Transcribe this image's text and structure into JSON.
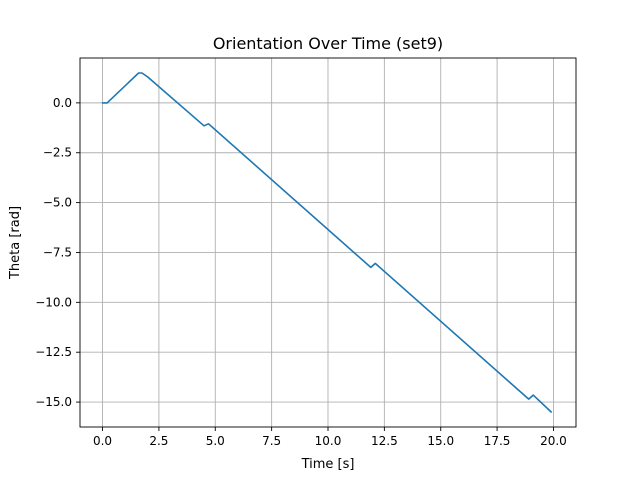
{
  "chart_data": {
    "type": "line",
    "title": "Orientation Over Time (set9)",
    "xlabel": "Time [s]",
    "ylabel": "Theta [rad]",
    "xlim": [
      -1.0,
      21.0
    ],
    "ylim": [
      -16.25,
      2.25
    ],
    "x_ticks": [
      0.0,
      2.5,
      5.0,
      7.5,
      10.0,
      12.5,
      15.0,
      17.5,
      20.0
    ],
    "x_tick_labels": [
      "0.0",
      "2.5",
      "5.0",
      "7.5",
      "10.0",
      "12.5",
      "15.0",
      "17.5",
      "20.0"
    ],
    "y_ticks": [
      0.0,
      -2.5,
      -5.0,
      -7.5,
      -10.0,
      -12.5,
      -15.0
    ],
    "y_tick_labels": [
      "0.0",
      "−2.5",
      "−5.0",
      "−7.5",
      "−10.0",
      "−12.5",
      "−15.0"
    ],
    "grid": true,
    "series": [
      {
        "color": "#1f77b4",
        "x": [
          0.0,
          0.2,
          1.6,
          1.75,
          2.0,
          4.5,
          4.7,
          11.9,
          12.1,
          18.9,
          19.1,
          19.9
        ],
        "y": [
          0.0,
          0.0,
          1.5,
          1.5,
          1.3,
          -1.15,
          -1.05,
          -8.25,
          -8.05,
          -14.85,
          -14.65,
          -15.5
        ]
      }
    ]
  }
}
